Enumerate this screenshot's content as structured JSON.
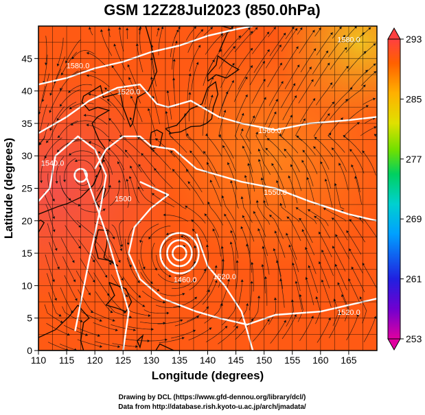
{
  "chart_data": {
    "type": "heatmap",
    "title": "GSM 12Z28Jul2023 (850.0hPa)",
    "xlabel": "Longitude (degrees)",
    "ylabel": "Latitude  (degrees)",
    "xlim": [
      110,
      170
    ],
    "ylim": [
      0,
      50
    ],
    "xticks": [
      110,
      115,
      120,
      125,
      130,
      135,
      140,
      145,
      150,
      155,
      160,
      165
    ],
    "yticks": [
      0,
      5,
      10,
      15,
      20,
      25,
      30,
      35,
      40,
      45
    ],
    "grid": true,
    "colorbar": {
      "min": 253,
      "max": 293,
      "ticks": [
        253,
        261,
        269,
        277,
        285,
        293
      ],
      "colors": [
        "#e000a0",
        "#7000d0",
        "#2020e0",
        "#00a0ff",
        "#00d0d0",
        "#00d060",
        "#70e000",
        "#e0e000",
        "#ffb000",
        "#ff6000",
        "#ff4040"
      ],
      "placement": "right"
    },
    "contour_labels": [
      {
        "text": "1580.0",
        "x": 117,
        "y": 43.5
      },
      {
        "text": "1520.0",
        "x": 126,
        "y": 39.5
      },
      {
        "text": "1560.0",
        "x": 151,
        "y": 33.5
      },
      {
        "text": "1540.0",
        "x": 112.5,
        "y": 28.5
      },
      {
        "text": "1550.0",
        "x": 152,
        "y": 24
      },
      {
        "text": "1500",
        "x": 125,
        "y": 23
      },
      {
        "text": "1460.0",
        "x": 136,
        "y": 10.5
      },
      {
        "text": "1520.0",
        "x": 143,
        "y": 11
      },
      {
        "text": "1520.0",
        "x": 165,
        "y": 5.5
      },
      {
        "text": "1580.0",
        "x": 165,
        "y": 47.5
      }
    ],
    "vortices": [
      {
        "x": 117.5,
        "y": 27
      },
      {
        "x": 135,
        "y": 15
      }
    ]
  },
  "credits": {
    "line1": "Drawing by DCL (https://www.gfd-dennou.org/library/dcl/)",
    "line2": "Data from http://database.rish.kyoto-u.ac.jp/arch/jmadata/"
  }
}
